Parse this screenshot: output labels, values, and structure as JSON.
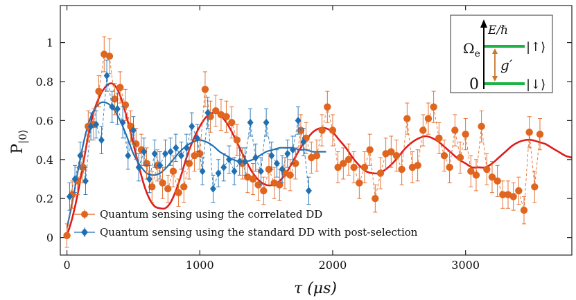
{
  "chart_data": {
    "type": "scatter",
    "title": "",
    "xlabel": "τ (μs)",
    "ylabel": "P",
    "ylabel_subscript": "|0⟩",
    "xlim": [
      -50,
      3800
    ],
    "ylim": [
      -0.09,
      1.19
    ],
    "x_ticks": [
      0,
      1000,
      2000,
      3000
    ],
    "y_ticks": [
      0,
      0.2,
      0.4,
      0.6,
      0.8,
      1
    ],
    "legend": {
      "placement": "bottom-left",
      "entries": [
        "Quantum sensing using the correlated DD",
        "Quantum sensing using the standard DD with post-selection"
      ]
    },
    "inset": {
      "energy_label": "E/ℏ",
      "upper_level_symbol": "Ω",
      "upper_level_subscript": "e",
      "upper_state": "|↑⟩",
      "lower_level_value": "0",
      "lower_state": "|↓⟩",
      "coupling": "g′"
    },
    "series": [
      {
        "name": "Quantum sensing using the correlated DD",
        "color": "#e0651f",
        "marker": "circle",
        "x": [
          0,
          40,
          80,
          120,
          160,
          200,
          240,
          280,
          320,
          360,
          400,
          440,
          480,
          520,
          560,
          600,
          640,
          680,
          720,
          760,
          800,
          840,
          880,
          920,
          960,
          1000,
          1040,
          1080,
          1120,
          1160,
          1200,
          1240,
          1280,
          1320,
          1360,
          1400,
          1440,
          1480,
          1520,
          1560,
          1600,
          1640,
          1680,
          1720,
          1760,
          1800,
          1840,
          1880,
          1920,
          1960,
          2000,
          2040,
          2080,
          2120,
          2160,
          2200,
          2240,
          2280,
          2320,
          2360,
          2400,
          2440,
          2480,
          2520,
          2560,
          2600,
          2640,
          2680,
          2720,
          2760,
          2800,
          2840,
          2880,
          2920,
          2960,
          3000,
          3040,
          3080,
          3120,
          3160,
          3200,
          3240,
          3280,
          3320,
          3360,
          3400,
          3440,
          3480,
          3520,
          3560
        ],
        "y": [
          0.01,
          0.22,
          0.29,
          0.36,
          0.57,
          0.58,
          0.75,
          0.94,
          0.93,
          0.71,
          0.77,
          0.68,
          0.57,
          0.48,
          0.45,
          0.38,
          0.26,
          0.37,
          0.28,
          0.25,
          0.34,
          0.23,
          0.26,
          0.38,
          0.42,
          0.43,
          0.76,
          0.62,
          0.65,
          0.63,
          0.62,
          0.59,
          0.5,
          0.38,
          0.31,
          0.3,
          0.27,
          0.24,
          0.35,
          0.28,
          0.27,
          0.33,
          0.32,
          0.38,
          0.55,
          0.51,
          0.41,
          0.42,
          0.55,
          0.67,
          0.55,
          0.36,
          0.38,
          0.4,
          0.36,
          0.28,
          0.36,
          0.45,
          0.2,
          0.33,
          0.43,
          0.44,
          0.42,
          0.35,
          0.61,
          0.36,
          0.37,
          0.55,
          0.61,
          0.67,
          0.51,
          0.42,
          0.36,
          0.55,
          0.41,
          0.53,
          0.34,
          0.32,
          0.57,
          0.35,
          0.31,
          0.29,
          0.22,
          0.22,
          0.21,
          0.24,
          0.14,
          0.54,
          0.26,
          0.53
        ],
        "err": [
          0.06,
          0.07,
          0.07,
          0.08,
          0.08,
          0.08,
          0.08,
          0.09,
          0.09,
          0.08,
          0.08,
          0.08,
          0.08,
          0.08,
          0.08,
          0.08,
          0.08,
          0.08,
          0.08,
          0.07,
          0.08,
          0.07,
          0.08,
          0.08,
          0.08,
          0.08,
          0.09,
          0.08,
          0.08,
          0.08,
          0.08,
          0.08,
          0.08,
          0.08,
          0.08,
          0.08,
          0.08,
          0.07,
          0.08,
          0.08,
          0.08,
          0.08,
          0.08,
          0.08,
          0.08,
          0.08,
          0.08,
          0.08,
          0.08,
          0.08,
          0.08,
          0.08,
          0.08,
          0.08,
          0.08,
          0.08,
          0.08,
          0.08,
          0.07,
          0.08,
          0.08,
          0.08,
          0.08,
          0.08,
          0.08,
          0.08,
          0.08,
          0.08,
          0.08,
          0.08,
          0.08,
          0.08,
          0.08,
          0.08,
          0.08,
          0.08,
          0.08,
          0.08,
          0.08,
          0.08,
          0.08,
          0.08,
          0.07,
          0.07,
          0.07,
          0.07,
          0.07,
          0.08,
          0.08,
          0.08
        ]
      },
      {
        "name": "Quantum sensing using the standard DD with post-selection",
        "color": "#1f6fb2",
        "marker": "diamond",
        "x": [
          20,
          60,
          100,
          140,
          180,
          220,
          260,
          300,
          340,
          380,
          420,
          460,
          500,
          540,
          580,
          620,
          660,
          700,
          740,
          780,
          820,
          860,
          900,
          940,
          980,
          1020,
          1060,
          1100,
          1140,
          1180,
          1220,
          1260,
          1300,
          1340,
          1380,
          1420,
          1460,
          1500,
          1540,
          1580,
          1620,
          1660,
          1700,
          1740,
          1780,
          1820
        ],
        "y": [
          0.21,
          0.3,
          0.42,
          0.29,
          0.57,
          0.58,
          0.5,
          0.83,
          0.67,
          0.66,
          0.59,
          0.42,
          0.55,
          0.36,
          0.44,
          0.3,
          0.43,
          0.37,
          0.43,
          0.44,
          0.46,
          0.42,
          0.46,
          0.57,
          0.51,
          0.34,
          0.64,
          0.25,
          0.33,
          0.36,
          0.4,
          0.34,
          0.39,
          0.39,
          0.59,
          0.41,
          0.34,
          0.59,
          0.42,
          0.38,
          0.35,
          0.43,
          0.45,
          0.6,
          0.49,
          0.24
        ],
        "err": [
          0.07,
          0.07,
          0.07,
          0.07,
          0.07,
          0.07,
          0.07,
          0.08,
          0.08,
          0.08,
          0.08,
          0.07,
          0.07,
          0.07,
          0.07,
          0.07,
          0.07,
          0.07,
          0.07,
          0.07,
          0.07,
          0.07,
          0.07,
          0.07,
          0.07,
          0.07,
          0.08,
          0.07,
          0.07,
          0.07,
          0.07,
          0.07,
          0.07,
          0.07,
          0.07,
          0.07,
          0.07,
          0.07,
          0.07,
          0.07,
          0.07,
          0.07,
          0.07,
          0.07,
          0.07,
          0.07
        ]
      }
    ],
    "fits": [
      {
        "name": "correlated DD fit",
        "color": "#e01b1b",
        "x": [
          0,
          40,
          80,
          120,
          160,
          200,
          250,
          300,
          340,
          380,
          420,
          460,
          500,
          540,
          580,
          620,
          660,
          700,
          740,
          780,
          820,
          860,
          900,
          950,
          1000,
          1050,
          1100,
          1150,
          1200,
          1250,
          1300,
          1350,
          1400,
          1450,
          1500,
          1550,
          1600,
          1650,
          1700,
          1750,
          1800,
          1850,
          1900,
          1950,
          2000,
          2050,
          2100,
          2150,
          2200,
          2250,
          2300,
          2350,
          2400,
          2450,
          2500,
          2550,
          2600,
          2650,
          2700,
          2750,
          2800,
          2850,
          2900,
          2950,
          3000,
          3050,
          3100,
          3150,
          3200,
          3250,
          3300,
          3350,
          3400,
          3450,
          3500,
          3550,
          3600,
          3650,
          3700,
          3750,
          3800
        ],
        "y": [
          0.01,
          0.1,
          0.22,
          0.37,
          0.52,
          0.64,
          0.73,
          0.78,
          0.79,
          0.76,
          0.69,
          0.59,
          0.48,
          0.37,
          0.27,
          0.2,
          0.16,
          0.15,
          0.15,
          0.18,
          0.24,
          0.32,
          0.41,
          0.5,
          0.57,
          0.62,
          0.64,
          0.63,
          0.59,
          0.53,
          0.46,
          0.39,
          0.33,
          0.29,
          0.27,
          0.27,
          0.29,
          0.33,
          0.39,
          0.45,
          0.5,
          0.54,
          0.56,
          0.56,
          0.54,
          0.5,
          0.46,
          0.41,
          0.37,
          0.34,
          0.33,
          0.33,
          0.35,
          0.38,
          0.42,
          0.46,
          0.49,
          0.51,
          0.52,
          0.51,
          0.49,
          0.46,
          0.43,
          0.4,
          0.38,
          0.36,
          0.36,
          0.36,
          0.38,
          0.41,
          0.44,
          0.47,
          0.49,
          0.5,
          0.5,
          0.49,
          0.48,
          0.46,
          0.44,
          0.42,
          0.41
        ]
      },
      {
        "name": "standard DD fit",
        "color": "#1f6fb2",
        "x": [
          0,
          40,
          80,
          120,
          160,
          200,
          250,
          300,
          350,
          400,
          450,
          500,
          550,
          600,
          650,
          700,
          750,
          800,
          850,
          900,
          950,
          1000,
          1050,
          1100,
          1150,
          1200,
          1250,
          1300,
          1350,
          1400,
          1450,
          1500,
          1550,
          1600,
          1650,
          1700,
          1750,
          1800,
          1850,
          1900,
          1950
        ],
        "y": [
          0.05,
          0.18,
          0.33,
          0.47,
          0.58,
          0.65,
          0.69,
          0.69,
          0.66,
          0.6,
          0.52,
          0.43,
          0.37,
          0.33,
          0.32,
          0.33,
          0.36,
          0.4,
          0.44,
          0.47,
          0.49,
          0.5,
          0.49,
          0.47,
          0.44,
          0.42,
          0.4,
          0.39,
          0.39,
          0.4,
          0.42,
          0.44,
          0.45,
          0.46,
          0.46,
          0.46,
          0.45,
          0.45,
          0.44,
          0.44,
          0.44
        ]
      }
    ]
  }
}
